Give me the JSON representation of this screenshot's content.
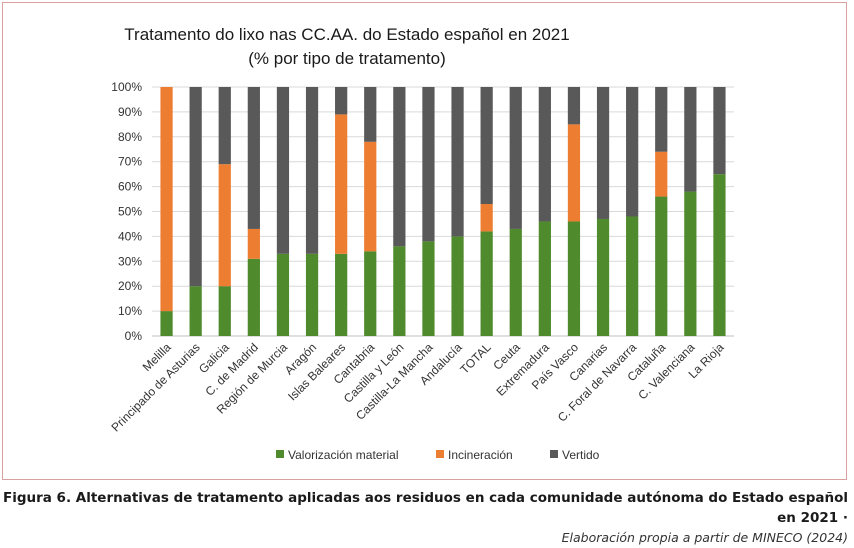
{
  "chart_data": {
    "type": "bar",
    "stacked": true,
    "title": "Tratamento do lixo nas CC.AA. do Estado español en 2021",
    "subtitle": "(% por tipo de tratamento)",
    "xlabel": "",
    "ylabel": "",
    "ylim": [
      0,
      100
    ],
    "yticks": [
      "0%",
      "10%",
      "20%",
      "30%",
      "40%",
      "50%",
      "60%",
      "70%",
      "80%",
      "90%",
      "100%"
    ],
    "grid": true,
    "legend_position": "bottom",
    "categories": [
      "Melilla",
      "Principado de Asturias",
      "Galicia",
      "C. de Madrid",
      "Región de Murcia",
      "Aragón",
      "Islas Baleares",
      "Cantabria",
      "Castilla y León",
      "Castilla-La Mancha",
      "Andalucía",
      "TOTAL",
      "Ceuta",
      "Extremadura",
      "País Vasco",
      "Canarias",
      "C. Foral de Navarra",
      "Cataluña",
      "C. Valenciana",
      "La Rioja"
    ],
    "series": [
      {
        "name": "Valorización material",
        "color": "#4f8a2d",
        "values": [
          10,
          20,
          20,
          31,
          33,
          33,
          33,
          34,
          36,
          38,
          40,
          42,
          43,
          46,
          46,
          47,
          48,
          56,
          58,
          65
        ]
      },
      {
        "name": "Incineración",
        "color": "#ed7d31",
        "values": [
          90,
          0,
          49,
          12,
          0,
          0,
          56,
          44,
          0,
          0,
          0,
          11,
          0,
          0,
          39,
          0,
          0,
          18,
          0,
          0
        ]
      },
      {
        "name": "Vertido",
        "color": "#595959",
        "values": [
          0,
          80,
          31,
          57,
          67,
          67,
          11,
          22,
          64,
          62,
          60,
          47,
          57,
          54,
          15,
          53,
          52,
          26,
          42,
          35
        ]
      }
    ]
  },
  "caption": {
    "main": "Figura 6. Alternativas de tratamento aplicadas aos residuos en cada comunidade autónoma do Estado español en 2021 ·",
    "source": "Elaboración propia a partir de MINECO (2024)"
  }
}
